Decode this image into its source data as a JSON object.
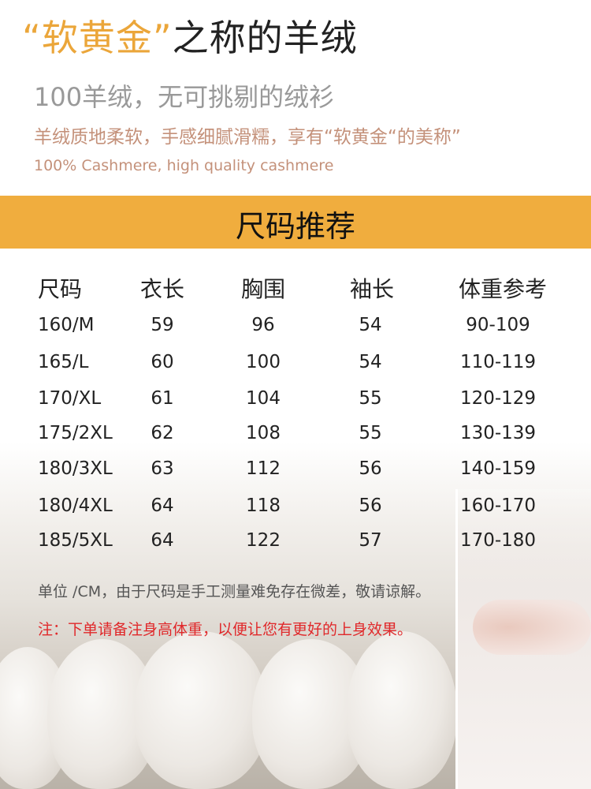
{
  "header": {
    "title_highlight": "“软黄金”",
    "title_rest": "之称的羊绒",
    "subtitle": "100羊绒，无可挑剔的绒衫",
    "tagline": "羊绒质地柔软，手感细腻滑糯，享有“软黄金“的美称”",
    "tagline_en": "100% Cashmere, high quality cashmere"
  },
  "banner": {
    "label": "尺码推荐",
    "color": "#f0ad3e"
  },
  "size_table": {
    "columns": [
      "尺码",
      "衣长",
      "胸围",
      "袖长",
      "体重参考"
    ],
    "rows": [
      [
        "160/M",
        "59",
        "96",
        "54",
        "90-109"
      ],
      [
        "165/L",
        "60",
        "100",
        "54",
        "110-119"
      ],
      [
        "170/XL",
        "61",
        "104",
        "55",
        "120-129"
      ],
      [
        "175/2XL",
        "62",
        "108",
        "55",
        "130-139"
      ],
      [
        "180/3XL",
        "63",
        "112",
        "56",
        "140-159"
      ],
      [
        "180/4XL",
        "64",
        "118",
        "56",
        "160-170"
      ],
      [
        "185/5XL",
        "64",
        "122",
        "57",
        "170-180"
      ]
    ]
  },
  "notes": {
    "unit_note": "单位 /CM，由于尺码是手工测量难免存在微差，敬请谅解。",
    "order_note": "注：下单请备注身高体重，以便让您有更好的上身效果。"
  },
  "colors": {
    "accent": "#eba63a",
    "warning": "#e0282a",
    "tagline": "#c4917a"
  }
}
